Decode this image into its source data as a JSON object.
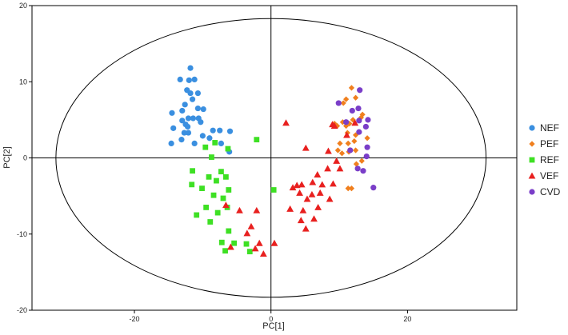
{
  "chart_data": {
    "type": "scatter",
    "xlabel": "PC[1]",
    "ylabel": "PC[2]",
    "xlim": [
      -35,
      36
    ],
    "ylim": [
      -20,
      20
    ],
    "xticks": [
      -20,
      0,
      20
    ],
    "yticks": [
      -20,
      -10,
      0,
      10,
      20
    ],
    "ellipse": {
      "cx": 0,
      "cy": 0,
      "rx": 31.5,
      "ry": 18.3
    },
    "zero_lines": true,
    "legend_position": "right",
    "series": [
      {
        "name": "NEF",
        "marker": "circle",
        "color": "#3a8fe0",
        "points": [
          [
            -11.8,
            11.8
          ],
          [
            -13.3,
            10.3
          ],
          [
            -12.0,
            10.2
          ],
          [
            -11.2,
            10.3
          ],
          [
            -12.3,
            8.9
          ],
          [
            -11.8,
            8.5
          ],
          [
            -10.7,
            8.5
          ],
          [
            -11.5,
            7.7
          ],
          [
            -12.6,
            7.0
          ],
          [
            -10.7,
            6.5
          ],
          [
            -9.9,
            6.4
          ],
          [
            -13.0,
            6.2
          ],
          [
            -14.5,
            5.9
          ],
          [
            -10.6,
            5.2
          ],
          [
            -12.1,
            5.2
          ],
          [
            -11.4,
            5.2
          ],
          [
            -13.0,
            4.9
          ],
          [
            -10.3,
            4.7
          ],
          [
            -12.5,
            4.4
          ],
          [
            -12.2,
            4.1
          ],
          [
            -14.3,
            3.9
          ],
          [
            -8.5,
            3.6
          ],
          [
            -7.5,
            3.6
          ],
          [
            -6.0,
            3.5
          ],
          [
            -12.1,
            3.3
          ],
          [
            -12.7,
            3.3
          ],
          [
            -10.0,
            2.9
          ],
          [
            -9.0,
            2.6
          ],
          [
            -13.1,
            2.4
          ],
          [
            -7.3,
            1.9
          ],
          [
            -14.6,
            1.9
          ],
          [
            -11.2,
            1.9
          ],
          [
            -6.1,
            0.8
          ]
        ]
      },
      {
        "name": "PEF",
        "marker": "diamond",
        "color": "#f07f1e",
        "points": [
          [
            11.8,
            9.2
          ],
          [
            12.4,
            7.9
          ],
          [
            11.0,
            7.7
          ],
          [
            10.6,
            7.2
          ],
          [
            13.4,
            5.7
          ],
          [
            13.2,
            5.3
          ],
          [
            12.0,
            5.0
          ],
          [
            11.5,
            4.5
          ],
          [
            10.5,
            4.7
          ],
          [
            11.0,
            4.2
          ],
          [
            9.3,
            4.5
          ],
          [
            9.7,
            4.2
          ],
          [
            11.2,
            3.3
          ],
          [
            12.4,
            3.0
          ],
          [
            14.1,
            2.6
          ],
          [
            12.2,
            2.2
          ],
          [
            10.1,
            1.9
          ],
          [
            11.3,
            1.9
          ],
          [
            12.4,
            1.0
          ],
          [
            9.8,
            1.0
          ],
          [
            11.4,
            0.8
          ],
          [
            10.4,
            0.6
          ],
          [
            13.3,
            -0.4
          ],
          [
            12.5,
            -0.8
          ],
          [
            11.8,
            -4.0
          ],
          [
            11.3,
            -4.0
          ]
        ]
      },
      {
        "name": "REF",
        "marker": "square",
        "color": "#3ee024",
        "points": [
          [
            -2.1,
            2.4
          ],
          [
            -8.2,
            2.0
          ],
          [
            -9.6,
            1.4
          ],
          [
            -6.3,
            1.2
          ],
          [
            -8.7,
            0.1
          ],
          [
            -11.5,
            -1.7
          ],
          [
            -7.3,
            -1.8
          ],
          [
            -9.1,
            -2.5
          ],
          [
            -6.6,
            -2.5
          ],
          [
            -8.0,
            -3.0
          ],
          [
            -11.6,
            -3.5
          ],
          [
            -10.1,
            -4.0
          ],
          [
            -6.2,
            -4.2
          ],
          [
            0.4,
            -4.2
          ],
          [
            -8.4,
            -4.9
          ],
          [
            -7.0,
            -5.3
          ],
          [
            -9.5,
            -6.5
          ],
          [
            -6.4,
            -6.5
          ],
          [
            -10.9,
            -7.5
          ],
          [
            -7.8,
            -7.2
          ],
          [
            -8.9,
            -8.4
          ],
          [
            -6.2,
            -9.6
          ],
          [
            -3.6,
            -11.3
          ],
          [
            -7.2,
            -11.1
          ],
          [
            -5.4,
            -11.2
          ],
          [
            -3.1,
            -12.3
          ],
          [
            -6.7,
            -12.2
          ]
        ]
      },
      {
        "name": "VEF",
        "marker": "triangle",
        "color": "#e8201f",
        "points": [
          [
            2.2,
            4.6
          ],
          [
            9.0,
            4.4
          ],
          [
            9.3,
            4.2
          ],
          [
            12.3,
            4.6
          ],
          [
            11.1,
            3.0
          ],
          [
            5.1,
            1.3
          ],
          [
            8.4,
            0.9
          ],
          [
            9.6,
            -0.4
          ],
          [
            10.1,
            -1.4
          ],
          [
            8.3,
            -1.4
          ],
          [
            6.8,
            -2.2
          ],
          [
            6.1,
            -3.2
          ],
          [
            4.5,
            -3.5
          ],
          [
            9.1,
            -3.4
          ],
          [
            3.2,
            -3.9
          ],
          [
            3.8,
            -3.6
          ],
          [
            7.5,
            -3.5
          ],
          [
            4.2,
            -4.6
          ],
          [
            7.2,
            -4.6
          ],
          [
            6.0,
            -4.8
          ],
          [
            -6.6,
            -6.2
          ],
          [
            5.3,
            -5.4
          ],
          [
            8.6,
            -5.4
          ],
          [
            2.8,
            -6.7
          ],
          [
            6.9,
            -6.5
          ],
          [
            4.7,
            -6.9
          ],
          [
            -4.6,
            -6.9
          ],
          [
            -2.1,
            -6.9
          ],
          [
            4.4,
            -8.2
          ],
          [
            6.3,
            -8.0
          ],
          [
            -2.9,
            -9.0
          ],
          [
            5.1,
            -9.3
          ],
          [
            -3.5,
            -9.9
          ],
          [
            0.5,
            -11.2
          ],
          [
            -1.7,
            -11.2
          ],
          [
            -2.3,
            -11.9
          ],
          [
            -5.9,
            -11.7
          ],
          [
            -1.1,
            -12.6
          ]
        ]
      },
      {
        "name": "CVD",
        "marker": "circle",
        "color": "#7a3ec8",
        "points": [
          [
            13.0,
            8.9
          ],
          [
            9.9,
            7.2
          ],
          [
            12.8,
            6.5
          ],
          [
            11.9,
            6.2
          ],
          [
            11.0,
            4.7
          ],
          [
            12.9,
            4.9
          ],
          [
            14.2,
            5.0
          ],
          [
            13.9,
            4.1
          ],
          [
            12.9,
            3.4
          ],
          [
            14.1,
            1.4
          ],
          [
            11.6,
            1.0
          ],
          [
            14.0,
            0.2
          ],
          [
            12.7,
            -1.4
          ],
          [
            13.5,
            -1.7
          ],
          [
            15.0,
            -3.9
          ]
        ]
      }
    ]
  }
}
